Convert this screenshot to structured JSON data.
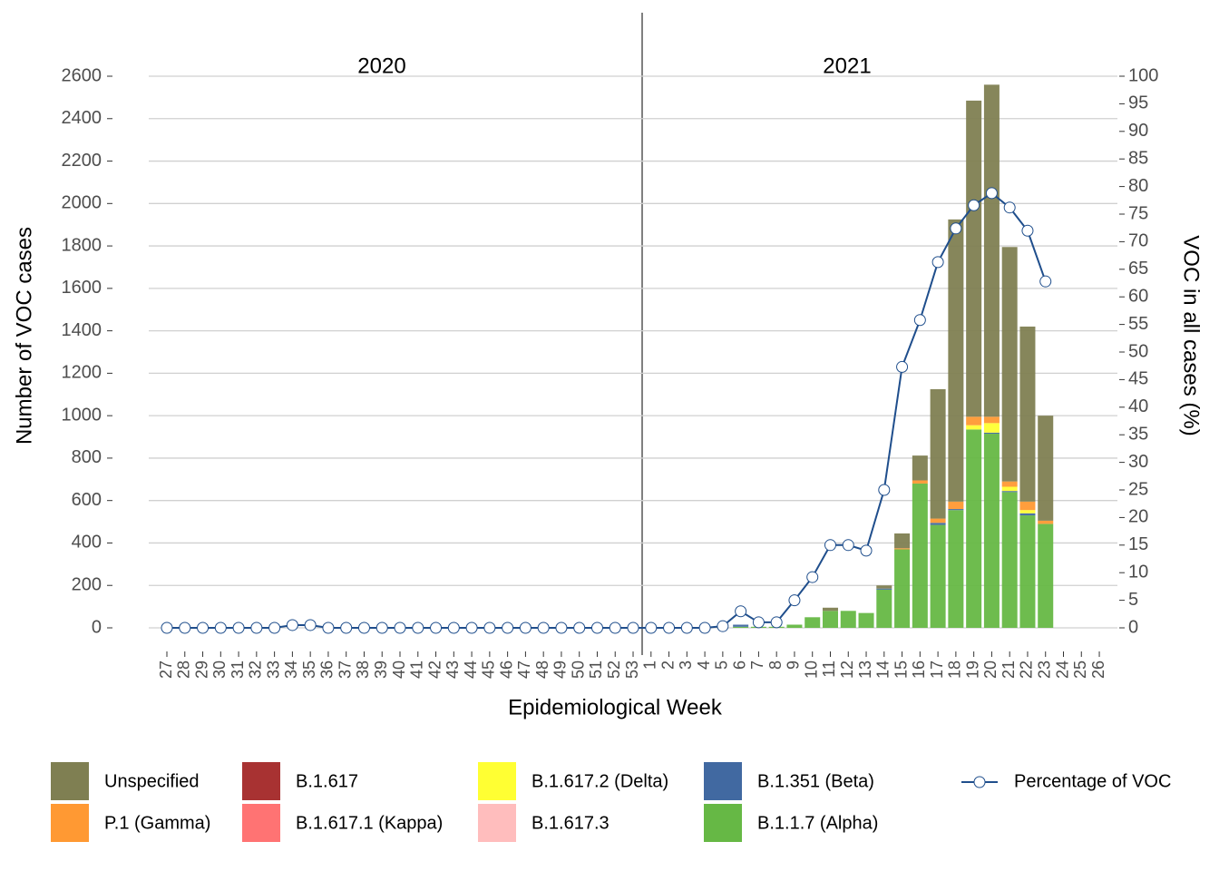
{
  "chart_data": {
    "type": "bar",
    "annotations": [
      "2020",
      "2021"
    ],
    "x_label": "Epidemiological Week",
    "y_label": "Number of VOC cases",
    "y2_label": "VOC in all cases (%)",
    "categories": [
      "27",
      "28",
      "29",
      "30",
      "31",
      "32",
      "33",
      "34",
      "35",
      "36",
      "37",
      "38",
      "39",
      "40",
      "41",
      "42",
      "43",
      "44",
      "45",
      "46",
      "47",
      "48",
      "49",
      "50",
      "51",
      "52",
      "53",
      "1",
      "2",
      "3",
      "4",
      "5",
      "6",
      "7",
      "8",
      "9",
      "10",
      "11",
      "12",
      "13",
      "14",
      "15",
      "16",
      "17",
      "18",
      "19",
      "20",
      "21",
      "22",
      "23",
      "24",
      "25",
      "26"
    ],
    "stacked": true,
    "grid": true,
    "ylim": [
      0,
      2600
    ],
    "yticks": [
      0,
      200,
      400,
      600,
      800,
      1000,
      1200,
      1400,
      1600,
      1800,
      2000,
      2200,
      2400,
      2600
    ],
    "y2lim": [
      0,
      100
    ],
    "y2ticks": [
      0,
      5,
      10,
      15,
      20,
      25,
      30,
      35,
      40,
      45,
      50,
      55,
      60,
      65,
      70,
      75,
      80,
      85,
      90,
      95,
      100
    ],
    "series": [
      {
        "name": "Unspecified",
        "color": "#7f7f52",
        "values": [
          0,
          0,
          0,
          0,
          0,
          0,
          0,
          0,
          0,
          0,
          0,
          0,
          0,
          0,
          0,
          0,
          0,
          0,
          0,
          0,
          0,
          0,
          0,
          0,
          0,
          0,
          0,
          0,
          0,
          0,
          0,
          0,
          0,
          0,
          0,
          0,
          0,
          15,
          0,
          0,
          15,
          70,
          117,
          610,
          1330,
          1490,
          1565,
          1105,
          825,
          495,
          0,
          0,
          0
        ]
      },
      {
        "name": "P.1 (Gamma)",
        "color": "#ff9933",
        "values": [
          0,
          0,
          0,
          0,
          0,
          0,
          0,
          0,
          0,
          0,
          0,
          0,
          0,
          0,
          0,
          0,
          0,
          0,
          0,
          0,
          0,
          0,
          0,
          0,
          0,
          0,
          0,
          0,
          0,
          0,
          0,
          0,
          0,
          0,
          0,
          0,
          0,
          0,
          0,
          0,
          0,
          5,
          15,
          20,
          35,
          40,
          30,
          25,
          40,
          15,
          0,
          0,
          0
        ]
      },
      {
        "name": "B.1.617",
        "color": "#a83232",
        "values": [
          0,
          0,
          0,
          0,
          0,
          0,
          0,
          0,
          0,
          0,
          0,
          0,
          0,
          0,
          0,
          0,
          0,
          0,
          0,
          0,
          0,
          0,
          0,
          0,
          0,
          0,
          0,
          0,
          0,
          0,
          0,
          0,
          0,
          0,
          0,
          0,
          0,
          0,
          0,
          0,
          0,
          0,
          0,
          0,
          0,
          0,
          0,
          0,
          0,
          0,
          0,
          0,
          0
        ]
      },
      {
        "name": "B.1.617.1 (Kappa)",
        "color": "#ff7373",
        "values": [
          0,
          0,
          0,
          0,
          0,
          0,
          0,
          0,
          0,
          0,
          0,
          0,
          0,
          0,
          0,
          0,
          0,
          0,
          0,
          0,
          0,
          0,
          0,
          0,
          0,
          0,
          0,
          0,
          0,
          0,
          0,
          0,
          0,
          0,
          0,
          0,
          0,
          0,
          0,
          0,
          0,
          0,
          0,
          0,
          0,
          0,
          0,
          0,
          0,
          0,
          0,
          0,
          0
        ]
      },
      {
        "name": "B.1.617.2 (Delta)",
        "color": "#ffff33",
        "values": [
          0,
          0,
          0,
          0,
          0,
          0,
          0,
          0,
          0,
          0,
          0,
          0,
          0,
          0,
          0,
          0,
          0,
          0,
          0,
          0,
          0,
          0,
          0,
          0,
          0,
          0,
          0,
          0,
          0,
          0,
          0,
          0,
          0,
          0,
          0,
          0,
          0,
          0,
          0,
          0,
          0,
          0,
          0,
          0,
          0,
          20,
          45,
          20,
          15,
          0,
          0,
          0,
          0
        ]
      },
      {
        "name": "B.1.617.3",
        "color": "#ffbdbd",
        "values": [
          0,
          0,
          0,
          0,
          0,
          0,
          0,
          0,
          0,
          0,
          0,
          0,
          0,
          0,
          0,
          0,
          0,
          0,
          0,
          0,
          0,
          0,
          0,
          0,
          0,
          0,
          0,
          0,
          0,
          0,
          0,
          0,
          0,
          0,
          0,
          0,
          0,
          0,
          0,
          0,
          0,
          0,
          0,
          0,
          0,
          0,
          0,
          0,
          0,
          0,
          0,
          0,
          0
        ]
      },
      {
        "name": "B.1.351 (Beta)",
        "color": "#4169a1",
        "values": [
          0,
          0,
          0,
          0,
          0,
          0,
          0,
          0,
          0,
          0,
          0,
          0,
          0,
          0,
          0,
          0,
          0,
          0,
          0,
          0,
          0,
          0,
          0,
          0,
          0,
          0,
          0,
          0,
          0,
          0,
          0,
          0,
          10,
          0,
          0,
          0,
          0,
          0,
          0,
          0,
          5,
          0,
          0,
          10,
          5,
          0,
          5,
          5,
          10,
          0,
          0,
          0,
          0
        ]
      },
      {
        "name": "B.1.1.7 (Alpha)",
        "color": "#66b845",
        "values": [
          0,
          0,
          0,
          0,
          0,
          0,
          0,
          0,
          0,
          0,
          0,
          0,
          0,
          0,
          0,
          0,
          0,
          0,
          0,
          0,
          0,
          0,
          0,
          0,
          0,
          0,
          0,
          0,
          0,
          0,
          0,
          0,
          5,
          5,
          5,
          15,
          50,
          80,
          80,
          70,
          180,
          370,
          680,
          485,
          555,
          935,
          915,
          640,
          530,
          490,
          0,
          0,
          0
        ]
      },
      {
        "name": "Percentage of VOC",
        "type": "line",
        "axis": "y2",
        "color": "#1f4e8c",
        "values": [
          0,
          0,
          0,
          0,
          0,
          0,
          0,
          0.5,
          0.5,
          0,
          0,
          0,
          0,
          0,
          0,
          0,
          0,
          0,
          0,
          0,
          0,
          0,
          0,
          0,
          0,
          0,
          0,
          0,
          0,
          0,
          0,
          0.3,
          3,
          1,
          1,
          5,
          9.2,
          15,
          15,
          14,
          25,
          47.3,
          55.8,
          66.3,
          72.4,
          76.6,
          78.8,
          76.2,
          72,
          62.8,
          null,
          null,
          null
        ]
      }
    ]
  }
}
